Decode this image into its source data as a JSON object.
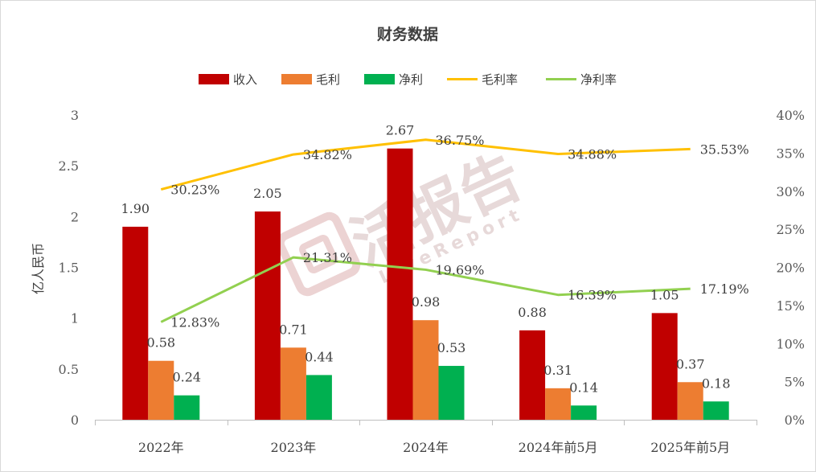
{
  "chart_data": {
    "type": "bar",
    "title": "财务数据",
    "ylabel": "亿人民币",
    "ylim": [
      0,
      3
    ],
    "yticks": [
      "0",
      "0.5",
      "1",
      "1.5",
      "2",
      "2.5",
      "3"
    ],
    "y2lim": [
      0,
      0.4
    ],
    "y2ticks": [
      "0%",
      "5%",
      "10%",
      "15%",
      "20%",
      "25%",
      "30%",
      "35%",
      "40%"
    ],
    "categories": [
      "2022年",
      "2023年",
      "2024年",
      "2024年前5月",
      "2025年前5月"
    ],
    "bar_series": [
      {
        "name": "收入",
        "color": "#c00000",
        "values": [
          1.9,
          2.05,
          2.67,
          0.88,
          1.05
        ],
        "labels": [
          "1.90",
          "2.05",
          "2.67",
          "0.88",
          "1.05"
        ]
      },
      {
        "name": "毛利",
        "color": "#ed7d31",
        "values": [
          0.58,
          0.71,
          0.98,
          0.31,
          0.37
        ],
        "labels": [
          "0.58",
          "0.71",
          "0.98",
          "0.31",
          "0.37"
        ]
      },
      {
        "name": "净利",
        "color": "#00b050",
        "values": [
          0.24,
          0.44,
          0.53,
          0.14,
          0.18
        ],
        "labels": [
          "0.24",
          "0.44",
          "0.53",
          "0.14",
          "0.18"
        ]
      }
    ],
    "line_series": [
      {
        "name": "毛利率",
        "color": "#ffc000",
        "label_color": "#ed7d31",
        "values": [
          0.3023,
          0.3482,
          0.3675,
          0.3488,
          0.3553
        ],
        "labels": [
          "30.23%",
          "34.82%",
          "36.75%",
          "34.88%",
          "35.53%"
        ]
      },
      {
        "name": "净利率",
        "color": "#92d050",
        "label_color": "#00b050",
        "values": [
          0.1283,
          0.2131,
          0.1969,
          0.1639,
          0.1719
        ],
        "labels": [
          "12.83%",
          "21.31%",
          "19.69%",
          "16.39%",
          "17.19%"
        ]
      }
    ],
    "legend_position": "top",
    "grid": false
  },
  "watermark": {
    "main": "活报告",
    "sub": "LiveReport",
    "color": "#e7d9d9"
  }
}
